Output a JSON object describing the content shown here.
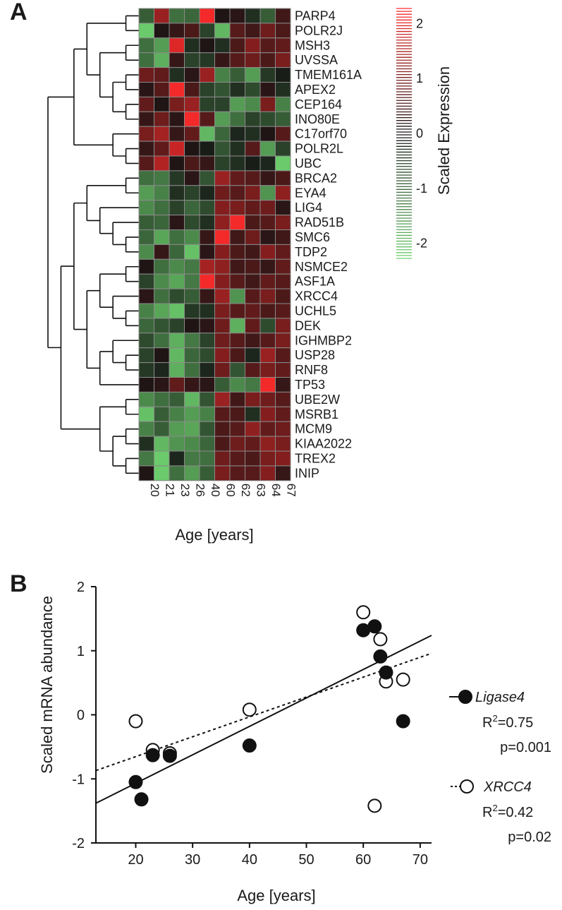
{
  "panels": {
    "a_label": "A",
    "b_label": "B"
  },
  "colors": {
    "red": "#ff2a2a",
    "black": "#141414",
    "green": "#6fd36f",
    "grid": "#8a8a8a"
  },
  "chart_data": [
    {
      "type": "heatmap",
      "panel": "A",
      "ages": [
        "20",
        "21",
        "23",
        "26",
        "40",
        "60",
        "62",
        "63",
        "64",
        "67"
      ],
      "genes": [
        "PARP4",
        "POLR2J",
        "MSH3",
        "UVSSA",
        "TMEM161A",
        "APEX2",
        "CEP164",
        "INO80E",
        "C17orf70",
        "POLR2L",
        "UBC",
        "BRCA2",
        "EYA4",
        "LIG4",
        "RAD51B",
        "SMC6",
        "TDP2",
        "NSMCE2",
        "ASF1A",
        "XRCC4",
        "UCHL5",
        "DEK",
        "IGHMBP2",
        "USP28",
        "RNF8",
        "TP53",
        "UBE2W",
        "MSRB1",
        "MCM9",
        "KIAA2022",
        "TREX2",
        "INIP"
      ],
      "values": [
        [
          -0.8,
          1.2,
          -1.0,
          -0.9,
          2.0,
          0.1,
          0.2,
          -0.3,
          -0.8,
          0.4
        ],
        [
          -2.0,
          0.1,
          0.3,
          0.5,
          -0.5,
          -1.8,
          0.6,
          0.4,
          0.8,
          0.5
        ],
        [
          -1.0,
          -1.5,
          1.8,
          -0.3,
          0.1,
          -0.3,
          0.5,
          1.0,
          0.6,
          0.7
        ],
        [
          -1.0,
          -1.7,
          0.3,
          -0.5,
          -0.4,
          0.3,
          0.6,
          0.8,
          0.5,
          0.9
        ],
        [
          0.8,
          0.7,
          -0.3,
          0.2,
          1.2,
          -1.2,
          -0.8,
          -1.5,
          -0.4,
          -0.1
        ],
        [
          0.2,
          0.6,
          2.0,
          0.5,
          -0.5,
          -0.7,
          -0.3,
          -0.6,
          0.2,
          -0.3
        ],
        [
          0.7,
          0.1,
          0.9,
          1.2,
          -0.5,
          -0.5,
          -1.5,
          -1.3,
          0.9,
          -1.2
        ],
        [
          0.3,
          0.8,
          0.2,
          2.0,
          0.6,
          -1.5,
          -1.0,
          -0.5,
          -0.6,
          -0.8
        ],
        [
          0.9,
          1.3,
          0.3,
          0.7,
          -1.8,
          -0.9,
          -0.2,
          -0.3,
          0.1,
          0.6
        ],
        [
          0.3,
          0.7,
          1.6,
          0.1,
          -0.1,
          -0.7,
          -0.3,
          0.6,
          -1.5,
          -0.5
        ],
        [
          0.6,
          1.4,
          0.1,
          0.5,
          0.3,
          -0.5,
          -0.3,
          -0.1,
          -0.2,
          -2.0
        ],
        [
          -1.0,
          -1.1,
          -0.4,
          0.2,
          -0.7,
          1.2,
          0.7,
          0.6,
          0.3,
          0.5
        ],
        [
          -1.5,
          -1.2,
          -0.3,
          -0.5,
          -0.2,
          0.8,
          0.6,
          0.9,
          -1.4,
          1.1
        ],
        [
          -1.3,
          -1.0,
          -0.5,
          -0.9,
          -0.6,
          1.0,
          0.9,
          0.7,
          0.8,
          0.2
        ],
        [
          -0.8,
          -0.9,
          0.2,
          -0.6,
          -0.3,
          1.1,
          2.0,
          0.5,
          0.6,
          0.9
        ],
        [
          -0.9,
          -1.6,
          -1.0,
          -1.3,
          0.3,
          2.0,
          0.4,
          0.8,
          0.2,
          0.4
        ],
        [
          -1.3,
          0.3,
          -0.9,
          -1.9,
          0.2,
          1.0,
          0.5,
          0.4,
          1.0,
          0.7
        ],
        [
          0.1,
          -1.0,
          -1.3,
          -1.1,
          1.3,
          1.1,
          0.4,
          0.5,
          0.3,
          0.7
        ],
        [
          -0.5,
          -1.3,
          -1.6,
          -1.1,
          2.0,
          1.0,
          0.6,
          0.4,
          0.7,
          0.6
        ],
        [
          0.2,
          -1.0,
          -0.6,
          -0.8,
          0.3,
          1.2,
          -1.4,
          0.6,
          0.9,
          0.5
        ],
        [
          -1.2,
          -1.6,
          -1.9,
          -0.4,
          -0.3,
          0.9,
          0.6,
          0.7,
          0.5,
          0.6
        ],
        [
          -0.9,
          -0.7,
          -0.5,
          0.1,
          0.2,
          0.8,
          -1.7,
          0.7,
          -0.6,
          0.9
        ],
        [
          -0.6,
          -1.0,
          -1.7,
          -1.1,
          -0.5,
          0.8,
          0.6,
          0.4,
          0.6,
          0.9
        ],
        [
          -0.5,
          0.1,
          -1.8,
          -0.9,
          -0.6,
          1.0,
          0.5,
          -0.2,
          1.2,
          0.6
        ],
        [
          -0.4,
          -0.2,
          -1.7,
          -1.0,
          -0.2,
          0.8,
          -0.7,
          0.6,
          0.9,
          0.7
        ],
        [
          0.1,
          0.2,
          0.7,
          0.3,
          0.2,
          -0.8,
          -1.3,
          -1.1,
          2.0,
          0.3
        ],
        [
          -1.3,
          -1.0,
          -0.8,
          -1.8,
          -0.7,
          1.2,
          0.4,
          0.9,
          0.8,
          0.6
        ],
        [
          -1.9,
          -0.8,
          -1.2,
          -1.5,
          -1.2,
          0.6,
          0.5,
          -0.3,
          1.0,
          0.7
        ],
        [
          -1.2,
          -0.8,
          -1.5,
          -1.6,
          -0.7,
          0.5,
          0.6,
          1.1,
          0.7,
          0.8
        ],
        [
          -0.3,
          -1.8,
          -1.4,
          -1.3,
          -0.9,
          0.5,
          0.8,
          0.7,
          1.1,
          0.9
        ],
        [
          -1.1,
          -2.0,
          -0.2,
          -1.1,
          -1.0,
          0.8,
          0.6,
          0.5,
          0.9,
          1.0
        ],
        [
          0.1,
          -2.0,
          -1.0,
          -1.5,
          -0.8,
          0.9,
          0.6,
          0.6,
          1.0,
          0.3
        ]
      ],
      "xlabel": "Age [years]",
      "colorbar": {
        "label": "Scaled Expression",
        "ticks": [
          "2",
          "1",
          "0",
          "-1",
          "-2"
        ],
        "range": [
          -2.3,
          2.3
        ]
      },
      "dendrogram": "row-clustering tree on the left"
    },
    {
      "type": "scatter",
      "panel": "B",
      "xlabel": "Age [years]",
      "ylabel": "Scaled mRNA abundance",
      "xlim": [
        13,
        72
      ],
      "ylim": [
        -2,
        2
      ],
      "xticks": [
        "20",
        "30",
        "40",
        "50",
        "60",
        "70"
      ],
      "yticks": [
        "2",
        "1",
        "0",
        "-1",
        "-2"
      ],
      "series": [
        {
          "name": "Ligase4",
          "marker": "filled",
          "line": "solid",
          "points": [
            [
              20,
              -1.05
            ],
            [
              21,
              -1.32
            ],
            [
              23,
              -0.63
            ],
            [
              26,
              -0.64
            ],
            [
              40,
              -0.48
            ],
            [
              60,
              1.32
            ],
            [
              62,
              1.38
            ],
            [
              63,
              0.91
            ],
            [
              64,
              0.66
            ],
            [
              67,
              -0.1
            ]
          ],
          "fit": [
            [
              13,
              -1.38
            ],
            [
              72,
              1.24
            ]
          ],
          "r2_base": "R",
          "r2_sup": "2",
          "r2_value": "=0.75",
          "p_text": "p=0.001"
        },
        {
          "name": "XRCC4",
          "marker": "open",
          "line": "dashed",
          "points": [
            [
              20,
              -0.1
            ],
            [
              23,
              -0.55
            ],
            [
              26,
              -0.6
            ],
            [
              40,
              0.08
            ],
            [
              60,
              1.6
            ],
            [
              63,
              1.18
            ],
            [
              64,
              0.52
            ],
            [
              67,
              0.55
            ],
            [
              62,
              -1.42
            ]
          ],
          "fit": [
            [
              13,
              -0.87
            ],
            [
              72,
              0.96
            ]
          ],
          "r2_base": "R",
          "r2_sup": "2",
          "r2_value": "=0.42",
          "p_text": "p=0.02"
        }
      ]
    }
  ]
}
